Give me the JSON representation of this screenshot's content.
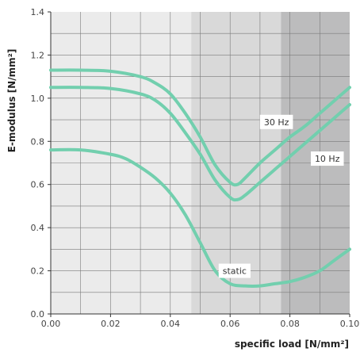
{
  "chart_data": {
    "type": "line",
    "title": "",
    "xlabel": "specific load [N/mm²]",
    "ylabel": "E-modulus [N/mm²]",
    "xlim": [
      0.0,
      0.1
    ],
    "ylim": [
      0.0,
      1.4
    ],
    "x_ticks": [
      0.0,
      0.02,
      0.04,
      0.06,
      0.08,
      0.1
    ],
    "x_tick_labels": [
      "0.00",
      "0.02",
      "0.04",
      "0.06",
      "0.08",
      "0.10"
    ],
    "y_ticks": [
      0.0,
      0.2,
      0.4,
      0.6,
      0.8,
      1.0,
      1.2,
      1.4
    ],
    "y_tick_labels": [
      "0.0",
      "0.2",
      "0.4",
      "0.6",
      "0.8",
      "1.0",
      "1.2",
      "1.4"
    ],
    "grid": true,
    "bands": [
      {
        "x_from": 0.0,
        "x_to": 0.047,
        "color": "#ebebeb"
      },
      {
        "x_from": 0.047,
        "x_to": 0.077,
        "color": "#d9d9d9"
      },
      {
        "x_from": 0.077,
        "x_to": 0.1,
        "color": "#bcbcbd"
      }
    ],
    "series": [
      {
        "name": "30 Hz",
        "color": "#72cfae",
        "x": [
          0.0,
          0.01,
          0.02,
          0.03,
          0.035,
          0.04,
          0.045,
          0.05,
          0.055,
          0.06,
          0.0625,
          0.065,
          0.07,
          0.075,
          0.08,
          0.085,
          0.09,
          0.095,
          0.1
        ],
        "y": [
          1.13,
          1.13,
          1.125,
          1.1,
          1.07,
          1.02,
          0.93,
          0.82,
          0.69,
          0.61,
          0.6,
          0.63,
          0.7,
          0.76,
          0.82,
          0.87,
          0.93,
          0.99,
          1.05
        ]
      },
      {
        "name": "10 Hz",
        "color": "#72cfae",
        "x": [
          0.0,
          0.01,
          0.02,
          0.03,
          0.035,
          0.04,
          0.045,
          0.05,
          0.055,
          0.06,
          0.0625,
          0.065,
          0.07,
          0.075,
          0.08,
          0.085,
          0.09,
          0.095,
          0.1
        ],
        "y": [
          1.05,
          1.05,
          1.045,
          1.02,
          0.99,
          0.93,
          0.84,
          0.74,
          0.62,
          0.54,
          0.53,
          0.55,
          0.61,
          0.67,
          0.73,
          0.79,
          0.85,
          0.91,
          0.97
        ]
      },
      {
        "name": "static",
        "color": "#72cfae",
        "x": [
          0.0,
          0.01,
          0.02,
          0.025,
          0.03,
          0.035,
          0.04,
          0.045,
          0.05,
          0.055,
          0.06,
          0.065,
          0.07,
          0.075,
          0.08,
          0.085,
          0.09,
          0.095,
          0.1
        ],
        "y": [
          0.76,
          0.76,
          0.74,
          0.72,
          0.68,
          0.63,
          0.56,
          0.46,
          0.33,
          0.2,
          0.14,
          0.13,
          0.13,
          0.14,
          0.15,
          0.17,
          0.2,
          0.25,
          0.3
        ]
      }
    ],
    "annotations": [
      {
        "text": "30 Hz",
        "series": "30 Hz",
        "x": 0.0755,
        "y": 0.89
      },
      {
        "text": "10 Hz",
        "series": "10 Hz",
        "x": 0.0925,
        "y": 0.72
      },
      {
        "text": "static",
        "series": "static",
        "x": 0.0615,
        "y": 0.2
      }
    ]
  }
}
